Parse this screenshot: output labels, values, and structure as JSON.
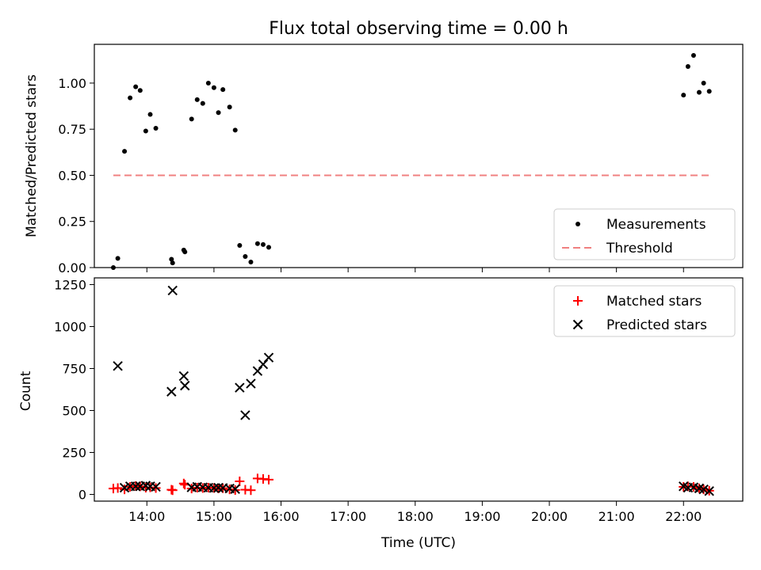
{
  "chart_data": [
    {
      "type": "scatter",
      "title": "Flux total observing time = 0.00 h",
      "ylabel": "Matched/Predicted stars",
      "xlabel": "",
      "xlim": [
        "13:13",
        "22:53"
      ],
      "ylim": [
        0,
        1.21
      ],
      "yticks": [
        0.0,
        0.25,
        0.5,
        0.75,
        1.0
      ],
      "ytick_labels": [
        "0.00",
        "0.25",
        "0.50",
        "0.75",
        "1.00"
      ],
      "legend": {
        "position": "lower-right",
        "entries": [
          "Measurements",
          "Threshold"
        ]
      },
      "series": [
        {
          "name": "Measurements",
          "color": "#000000",
          "marker": "dot",
          "points": [
            [
              "13:30",
              0.0
            ],
            [
              "13:34",
              0.05
            ],
            [
              "13:40",
              0.63
            ],
            [
              "13:45",
              0.92
            ],
            [
              "13:50",
              0.98
            ],
            [
              "13:54",
              0.96
            ],
            [
              "13:59",
              0.74
            ],
            [
              "14:03",
              0.83
            ],
            [
              "14:08",
              0.755
            ],
            [
              "14:22",
              0.045
            ],
            [
              "14:23",
              0.025
            ],
            [
              "14:33",
              0.095
            ],
            [
              "14:34",
              0.085
            ],
            [
              "14:40",
              0.805
            ],
            [
              "14:45",
              0.91
            ],
            [
              "14:50",
              0.89
            ],
            [
              "14:55",
              1.0
            ],
            [
              "15:00",
              0.975
            ],
            [
              "15:04",
              0.84
            ],
            [
              "15:08",
              0.965
            ],
            [
              "15:14",
              0.87
            ],
            [
              "15:19",
              0.745
            ],
            [
              "15:23",
              0.12
            ],
            [
              "15:28",
              0.06
            ],
            [
              "15:33",
              0.03
            ],
            [
              "15:39",
              0.13
            ],
            [
              "15:44",
              0.125
            ],
            [
              "15:49",
              0.11
            ],
            [
              "22:00",
              0.935
            ],
            [
              "22:04",
              1.09
            ],
            [
              "22:09",
              1.15
            ],
            [
              "22:14",
              0.95
            ],
            [
              "22:18",
              1.0
            ],
            [
              "22:23",
              0.955
            ]
          ]
        },
        {
          "name": "Threshold",
          "color": "#f08080",
          "style": "dashed",
          "points": [
            [
              "13:30",
              0.5
            ],
            [
              "22:25",
              0.5
            ]
          ]
        }
      ]
    },
    {
      "type": "scatter",
      "title": "",
      "ylabel": "Count",
      "xlabel": "Time (UTC)",
      "xlim": [
        "13:13",
        "22:53"
      ],
      "ylim": [
        -40,
        1290
      ],
      "yticks": [
        0,
        250,
        500,
        750,
        1000,
        1250
      ],
      "ytick_labels": [
        "0",
        "250",
        "500",
        "750",
        "1000",
        "1250"
      ],
      "xtick_labels": [
        "14:00",
        "15:00",
        "16:00",
        "17:00",
        "18:00",
        "19:00",
        "20:00",
        "21:00",
        "22:00"
      ],
      "legend": {
        "position": "top-right",
        "entries": [
          "Matched stars",
          "Predicted stars"
        ]
      },
      "series": [
        {
          "name": "Matched stars",
          "color": "#ff0000",
          "marker": "plus",
          "points": [
            [
              "13:30",
              35
            ],
            [
              "13:34",
              38
            ],
            [
              "13:40",
              30
            ],
            [
              "13:45",
              45
            ],
            [
              "13:50",
              50
            ],
            [
              "13:54",
              48
            ],
            [
              "13:59",
              40
            ],
            [
              "14:03",
              42
            ],
            [
              "14:08",
              38
            ],
            [
              "14:22",
              28
            ],
            [
              "14:23",
              25
            ],
            [
              "14:33",
              65
            ],
            [
              "14:34",
              58
            ],
            [
              "14:40",
              35
            ],
            [
              "14:45",
              40
            ],
            [
              "14:50",
              38
            ],
            [
              "14:55",
              40
            ],
            [
              "15:00",
              38
            ],
            [
              "15:04",
              36
            ],
            [
              "15:08",
              37
            ],
            [
              "15:14",
              30
            ],
            [
              "15:19",
              26
            ],
            [
              "15:23",
              78
            ],
            [
              "15:28",
              28
            ],
            [
              "15:33",
              25
            ],
            [
              "15:39",
              95
            ],
            [
              "15:44",
              92
            ],
            [
              "15:49",
              88
            ],
            [
              "22:00",
              45
            ],
            [
              "22:04",
              48
            ],
            [
              "22:09",
              45
            ],
            [
              "22:14",
              36
            ],
            [
              "22:18",
              30
            ],
            [
              "22:23",
              22
            ]
          ]
        },
        {
          "name": "Predicted stars",
          "color": "#000000",
          "marker": "x",
          "points": [
            [
              "13:34",
              765
            ],
            [
              "13:40",
              40
            ],
            [
              "13:45",
              48
            ],
            [
              "13:50",
              48
            ],
            [
              "13:54",
              48
            ],
            [
              "13:59",
              52
            ],
            [
              "14:03",
              48
            ],
            [
              "14:08",
              45
            ],
            [
              "14:22",
              612
            ],
            [
              "14:23",
              1215
            ],
            [
              "14:33",
              705
            ],
            [
              "14:34",
              648
            ],
            [
              "14:40",
              42
            ],
            [
              "14:45",
              45
            ],
            [
              "14:50",
              42
            ],
            [
              "14:55",
              40
            ],
            [
              "15:00",
              38
            ],
            [
              "15:04",
              40
            ],
            [
              "15:08",
              38
            ],
            [
              "15:14",
              35
            ],
            [
              "15:19",
              32
            ],
            [
              "15:23",
              636
            ],
            [
              "15:28",
              472
            ],
            [
              "15:33",
              660
            ],
            [
              "15:39",
              735
            ],
            [
              "15:44",
              775
            ],
            [
              "15:49",
              815
            ],
            [
              "22:00",
              48
            ],
            [
              "22:04",
              40
            ],
            [
              "22:09",
              42
            ],
            [
              "22:14",
              36
            ],
            [
              "22:18",
              30
            ],
            [
              "22:23",
              20
            ]
          ]
        }
      ]
    }
  ]
}
